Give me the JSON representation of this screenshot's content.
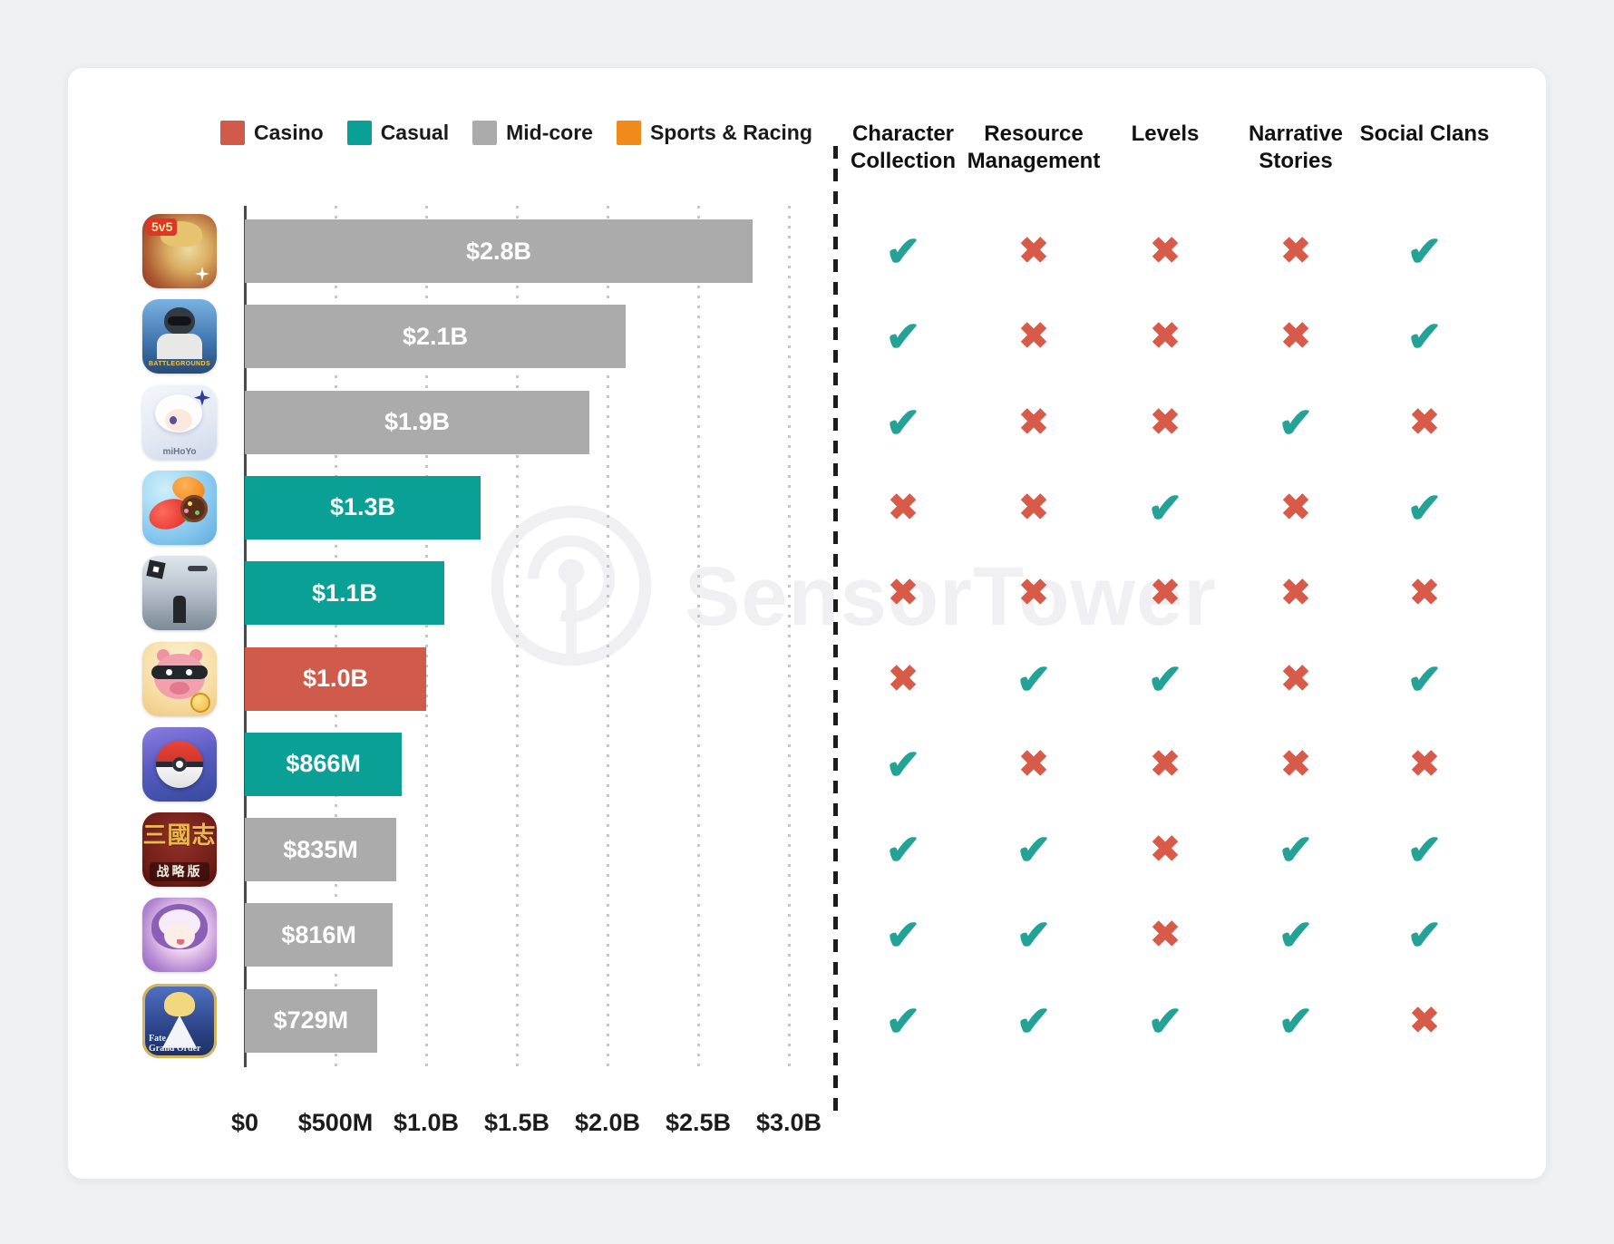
{
  "page": {
    "background": "#eef0f2",
    "card_background": "#ffffff"
  },
  "legend": [
    {
      "label": "Casino",
      "color": "#d15b4b"
    },
    {
      "label": "Casual",
      "color": "#0ba096"
    },
    {
      "label": "Mid-core",
      "color": "#ababab"
    },
    {
      "label": "Sports & Racing",
      "color": "#ef8a1b"
    }
  ],
  "feature_columns": [
    {
      "label": "Character Collection",
      "lines": [
        "Character",
        "Collection"
      ]
    },
    {
      "label": "Resource Management",
      "lines": [
        "Resource",
        "Management"
      ]
    },
    {
      "label": "Levels",
      "lines": [
        "Levels"
      ]
    },
    {
      "label": "Narrative Stories",
      "lines": [
        "Narrative",
        "Stories"
      ]
    },
    {
      "label": "Social Clans",
      "lines": [
        "Social Clans"
      ]
    }
  ],
  "marks": {
    "check_glyph": "✔",
    "check_color": "#23a295",
    "cross_glyph": "✖",
    "cross_color": "#d85b49"
  },
  "watermark": {
    "text": "SensorTower",
    "color": "#f0f0f2"
  },
  "chart_data": {
    "type": "bar",
    "orientation": "horizontal",
    "title": "",
    "xlabel": "",
    "x_axis": {
      "ticks": [
        "$0",
        "$500M",
        "$1.0B",
        "$1.5B",
        "$2.0B",
        "$2.5B",
        "$3.0B"
      ],
      "tick_values_musd": [
        0,
        500,
        1000,
        1500,
        2000,
        2500,
        3000
      ],
      "max_musd": 3000,
      "gridlines": "dotted"
    },
    "rows": [
      {
        "icon": "honor-of-kings",
        "icon_text": "5v5",
        "category": "Mid-core",
        "value_musd": 2800,
        "value_label": "$2.8B",
        "features": [
          true,
          false,
          false,
          false,
          true
        ]
      },
      {
        "icon": "pubg-mobile",
        "icon_text": "BATTLEGROUNDS",
        "category": "Mid-core",
        "value_musd": 2100,
        "value_label": "$2.1B",
        "features": [
          true,
          false,
          false,
          false,
          true
        ]
      },
      {
        "icon": "genshin-impact",
        "icon_text": "miHoYo",
        "category": "Mid-core",
        "value_musd": 1900,
        "value_label": "$1.9B",
        "features": [
          true,
          false,
          false,
          true,
          false
        ]
      },
      {
        "icon": "candy-crush-saga",
        "icon_text": "",
        "category": "Casual",
        "value_musd": 1300,
        "value_label": "$1.3B",
        "features": [
          false,
          false,
          true,
          false,
          true
        ]
      },
      {
        "icon": "roblox",
        "icon_text": "",
        "category": "Casual",
        "value_musd": 1100,
        "value_label": "$1.1B",
        "features": [
          false,
          false,
          false,
          false,
          false
        ]
      },
      {
        "icon": "coin-master",
        "icon_text": "",
        "category": "Casino",
        "value_musd": 1000,
        "value_label": "$1.0B",
        "features": [
          false,
          true,
          true,
          false,
          true
        ]
      },
      {
        "icon": "pokemon-go",
        "icon_text": "",
        "category": "Casual",
        "value_musd": 866,
        "value_label": "$866M",
        "features": [
          true,
          false,
          false,
          false,
          false
        ]
      },
      {
        "icon": "three-kingdoms-strategy",
        "icon_text": "三國志|战略版",
        "category": "Mid-core",
        "value_musd": 835,
        "value_label": "$835M",
        "features": [
          true,
          true,
          false,
          true,
          true
        ]
      },
      {
        "icon": "uma-musume",
        "icon_text": "",
        "category": "Mid-core",
        "value_musd": 816,
        "value_label": "$816M",
        "features": [
          true,
          true,
          false,
          true,
          true
        ]
      },
      {
        "icon": "fate-grand-order",
        "icon_text": "Fate|Grand Order",
        "category": "Mid-core",
        "value_musd": 729,
        "value_label": "$729M",
        "features": [
          true,
          true,
          true,
          true,
          false
        ]
      }
    ]
  }
}
